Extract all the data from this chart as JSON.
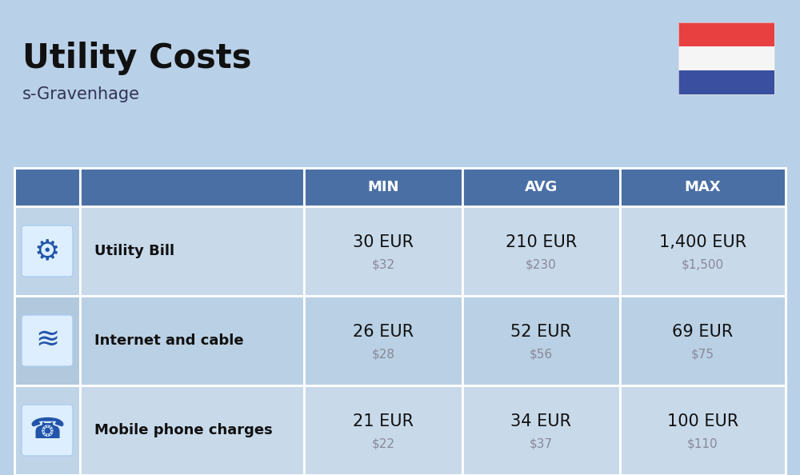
{
  "title": "Utility Costs",
  "subtitle": "s-Gravenhage",
  "bg_color": "#b8d0e8",
  "header_color": "#4a6fa5",
  "header_text_color": "#ffffff",
  "row_color_light": "#c8daea",
  "row_color_medium": "#bad0e4",
  "icon_col_color_light": "#c0d4e8",
  "icon_col_color_medium": "#b2c8dc",
  "table_border_color": "#ffffff",
  "col_headers": [
    "MIN",
    "AVG",
    "MAX"
  ],
  "rows": [
    {
      "label": "Utility Bill",
      "min_eur": "30 EUR",
      "min_usd": "$32",
      "avg_eur": "210 EUR",
      "avg_usd": "$230",
      "max_eur": "1,400 EUR",
      "max_usd": "$1,500"
    },
    {
      "label": "Internet and cable",
      "min_eur": "26 EUR",
      "min_usd": "$28",
      "avg_eur": "52 EUR",
      "avg_usd": "$56",
      "max_eur": "69 EUR",
      "max_usd": "$75"
    },
    {
      "label": "Mobile phone charges",
      "min_eur": "21 EUR",
      "min_usd": "$22",
      "avg_eur": "34 EUR",
      "avg_usd": "$37",
      "max_eur": "100 EUR",
      "max_usd": "$110"
    }
  ],
  "flag_red": "#e84040",
  "flag_white": "#f5f5f5",
  "flag_blue": "#3a4fa0",
  "title_fontsize": 30,
  "subtitle_fontsize": 15,
  "header_fontsize": 13,
  "label_fontsize": 13,
  "value_fontsize": 15,
  "subvalue_fontsize": 11
}
